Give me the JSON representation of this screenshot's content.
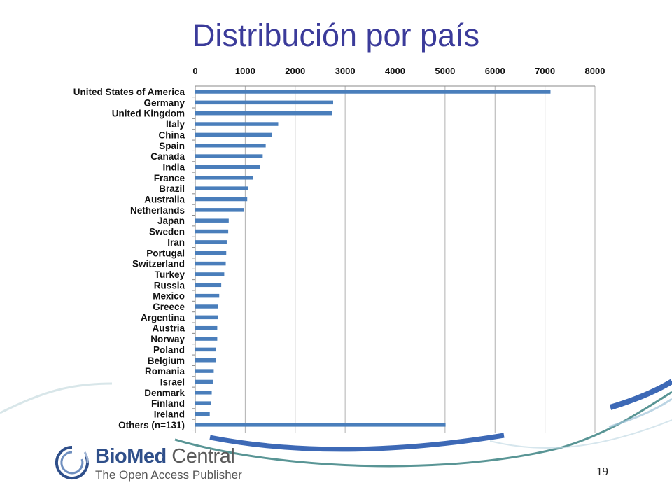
{
  "slide": {
    "title": "Distribución por país",
    "page_number": "19"
  },
  "logo": {
    "brand_bio": "Bio",
    "brand_med": "Med",
    "brand_central": " Central",
    "tagline": "The Open Access Publisher"
  },
  "colors": {
    "title": "#3b3b9a",
    "bar": "#4a7ebb",
    "grid": "#b0b0b0",
    "swoosh_blue": "#3d69b6",
    "swoosh_teal": "#2f7a7a"
  },
  "chart_data": {
    "type": "bar",
    "orientation": "horizontal",
    "title": "",
    "xlabel": "",
    "ylabel": "",
    "xlim": [
      0,
      8000
    ],
    "x_ticks": [
      0,
      1000,
      2000,
      3000,
      4000,
      5000,
      6000,
      7000,
      8000
    ],
    "x_axis_position": "top",
    "grid": true,
    "legend": "none",
    "categories": [
      "United States of America",
      "Germany",
      "United Kingdom",
      "Italy",
      "China",
      "Spain",
      "Canada",
      "India",
      "France",
      "Brazil",
      "Australia",
      "Netherlands",
      "Japan",
      "Sweden",
      "Iran",
      "Portugal",
      "Switzerland",
      "Turkey",
      "Russia",
      "Mexico",
      "Greece",
      "Argentina",
      "Austria",
      "Norway",
      "Poland",
      "Belgium",
      "Romania",
      "Israel",
      "Denmark",
      "Finland",
      "Ireland",
      "Others (n=131)"
    ],
    "values": [
      7110,
      2760,
      2740,
      1660,
      1540,
      1410,
      1350,
      1300,
      1160,
      1060,
      1040,
      980,
      670,
      660,
      630,
      620,
      610,
      580,
      520,
      480,
      460,
      450,
      440,
      440,
      420,
      410,
      370,
      350,
      330,
      310,
      290,
      5010
    ]
  }
}
